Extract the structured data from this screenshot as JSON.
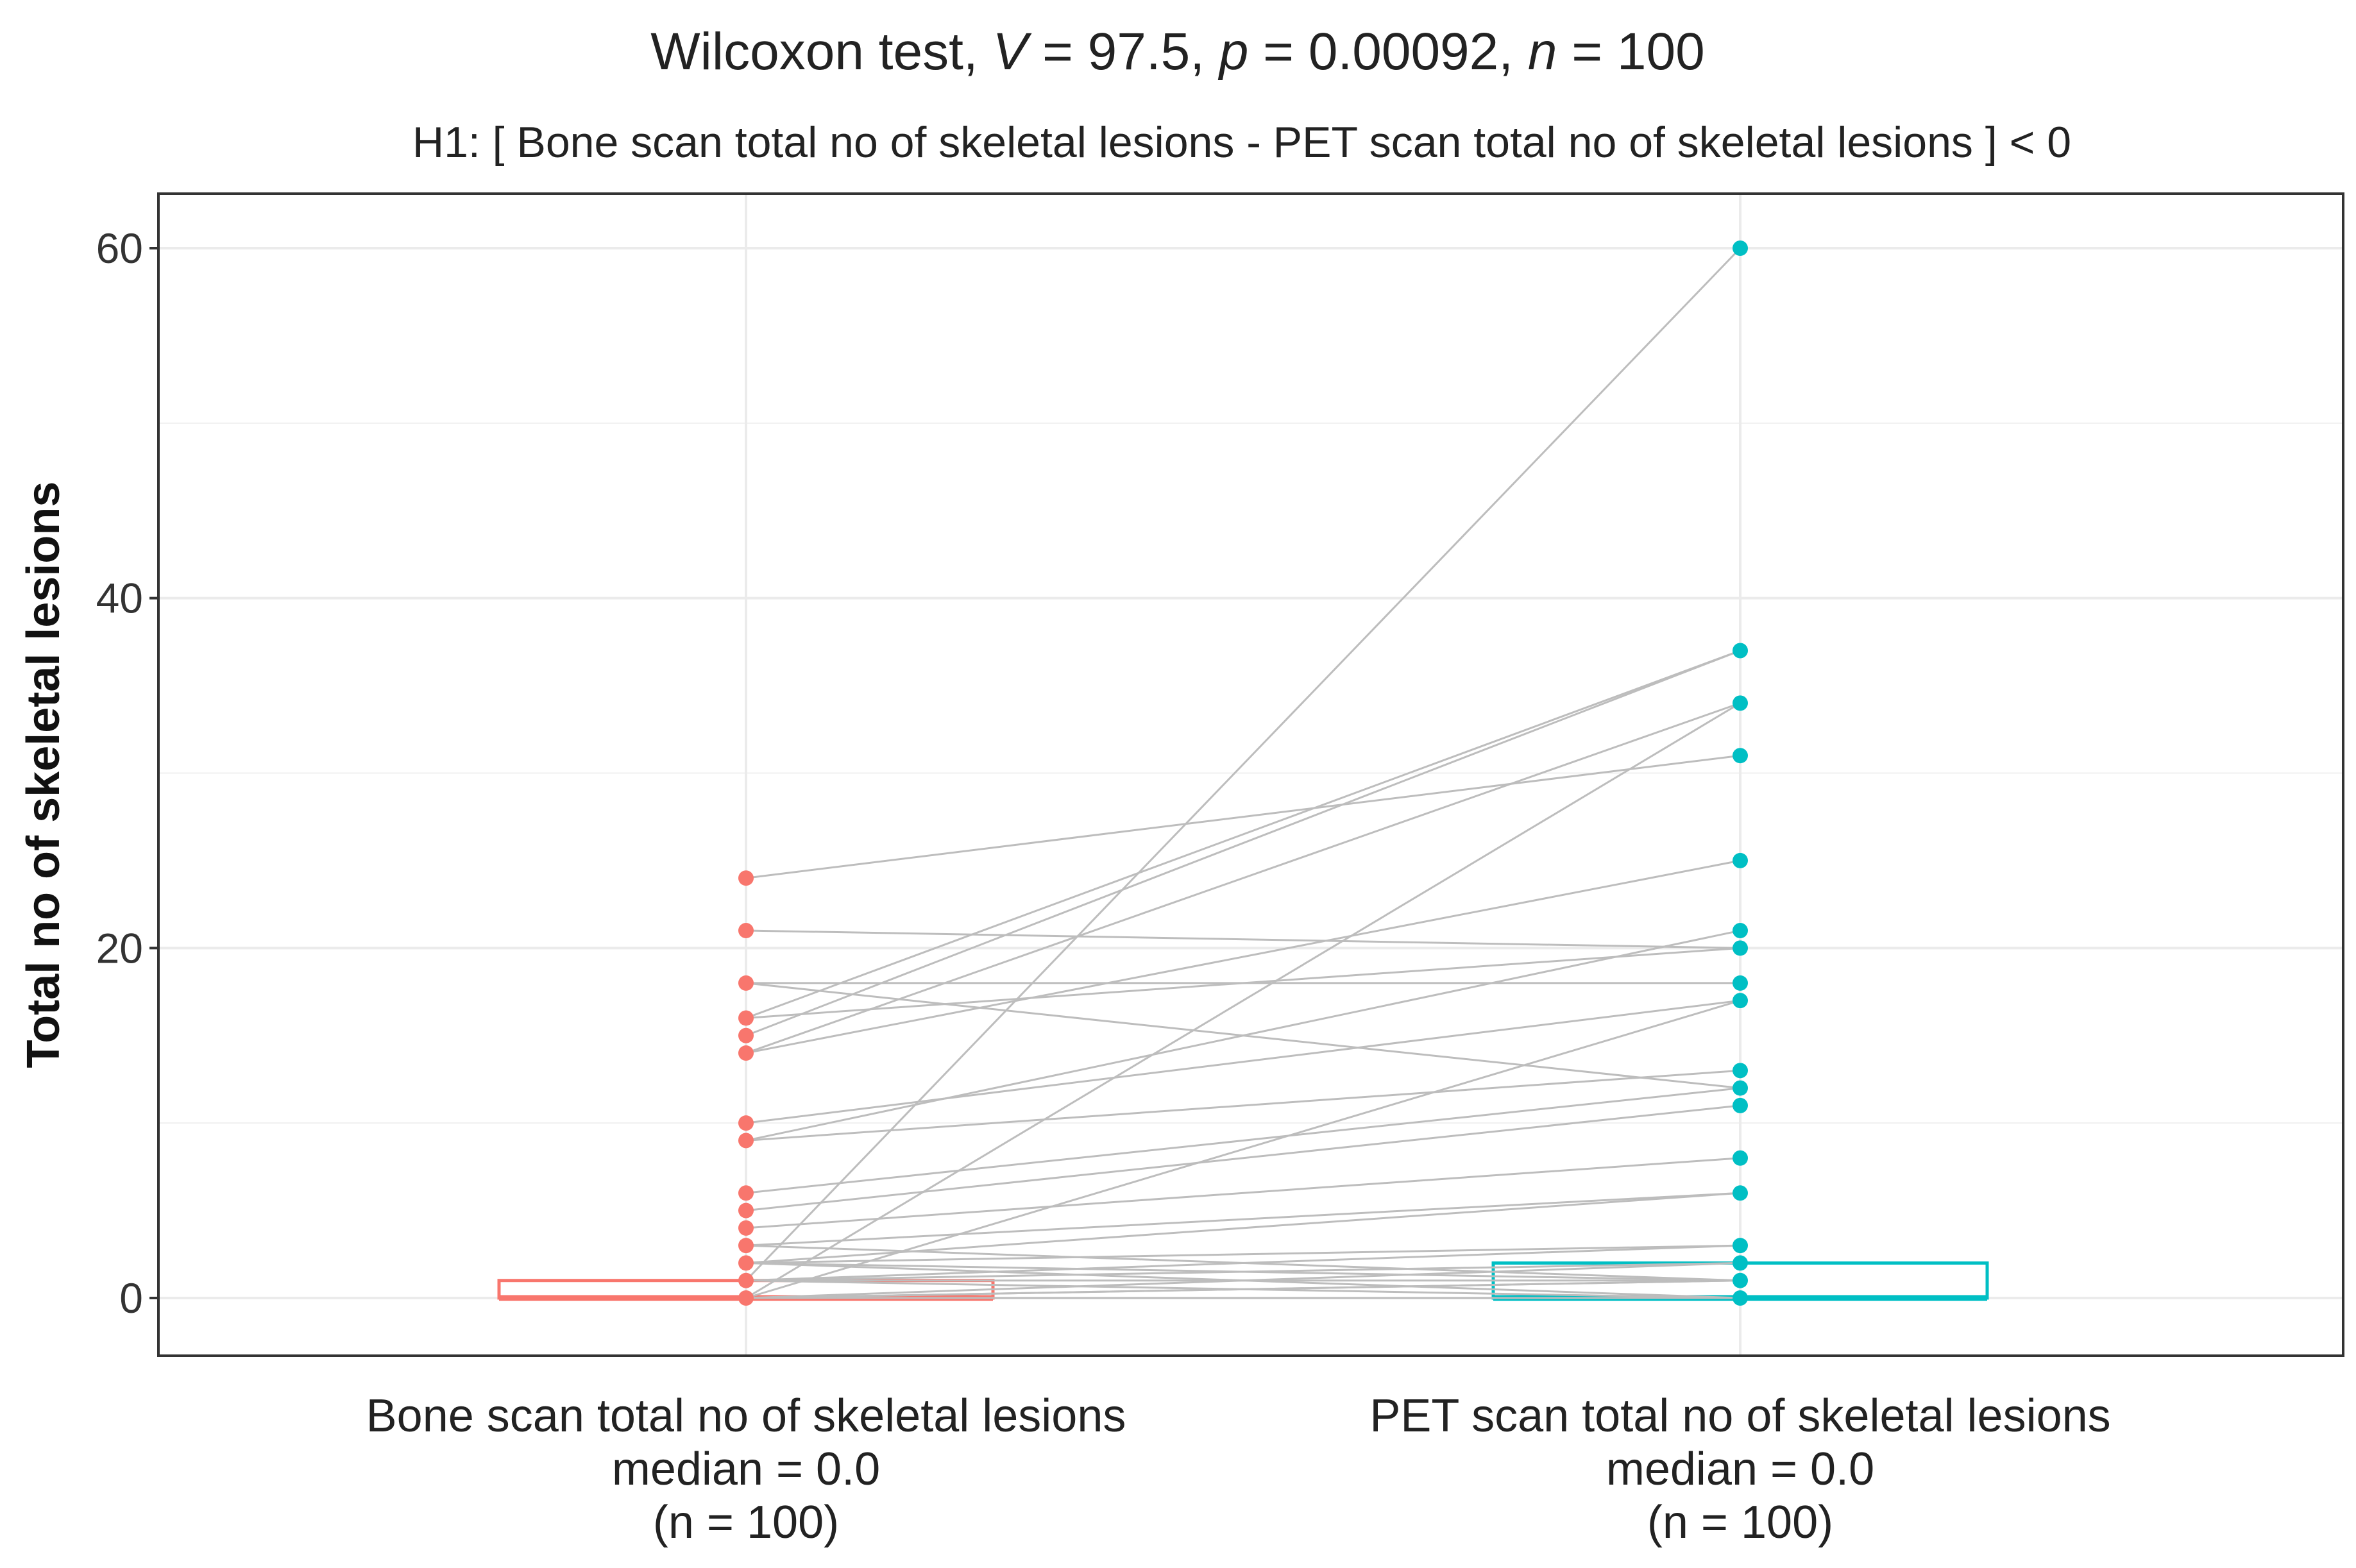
{
  "chart_data": {
    "type": "paired-scatter",
    "title": {
      "prefix": "Wilcoxon test, ",
      "stat_var": "V",
      "stat_val": " = 97.5, ",
      "p_var": "p",
      "p_val": " = 0.00092, ",
      "n_var": "n",
      "n_val": " = 100"
    },
    "subtitle": "H1: [ Bone scan total no of skeletal lesions - PET scan total no of skeletal lesions ] < 0",
    "ylabel": "Total no of skeletal lesions",
    "ylim": [
      -3,
      63
    ],
    "yticks": [
      0,
      20,
      40,
      60
    ],
    "grid": true,
    "groups": [
      {
        "name": "Bone scan total no of skeletal lesions",
        "median_label": "median = 0.0",
        "n_label": "(n = 100)",
        "color": "#F8766D",
        "box": {
          "q1": 0,
          "median": 0,
          "q3": 1
        },
        "points": [
          0,
          1,
          2,
          3,
          4,
          5,
          6,
          9,
          10,
          14,
          15,
          16,
          18,
          21,
          24
        ]
      },
      {
        "name": "PET scan total no of skeletal lesions",
        "median_label": "median = 0.0",
        "n_label": "(n = 100)",
        "color": "#00BFC4",
        "box": {
          "q1": 0,
          "median": 0,
          "q3": 2
        },
        "points": [
          0,
          1,
          2,
          3,
          6,
          8,
          11,
          12,
          13,
          17,
          18,
          20,
          21,
          25,
          31,
          34,
          37,
          60
        ]
      }
    ],
    "pairs": [
      [
        24,
        31
      ],
      [
        21,
        20
      ],
      [
        18,
        18
      ],
      [
        18,
        12
      ],
      [
        16,
        37
      ],
      [
        16,
        20
      ],
      [
        15,
        37
      ],
      [
        14,
        25
      ],
      [
        14,
        34
      ],
      [
        10,
        17
      ],
      [
        9,
        21
      ],
      [
        9,
        13
      ],
      [
        6,
        12
      ],
      [
        5,
        11
      ],
      [
        4,
        8
      ],
      [
        3,
        6
      ],
      [
        2,
        6
      ],
      [
        2,
        3
      ],
      [
        1,
        60
      ],
      [
        1,
        3
      ],
      [
        1,
        2
      ],
      [
        0,
        34
      ],
      [
        0,
        17
      ],
      [
        0,
        2
      ],
      [
        0,
        1
      ],
      [
        1,
        1
      ],
      [
        2,
        1
      ],
      [
        2,
        0
      ],
      [
        3,
        1
      ],
      [
        0,
        0
      ],
      [
        1,
        0
      ],
      [
        0,
        1
      ]
    ]
  }
}
